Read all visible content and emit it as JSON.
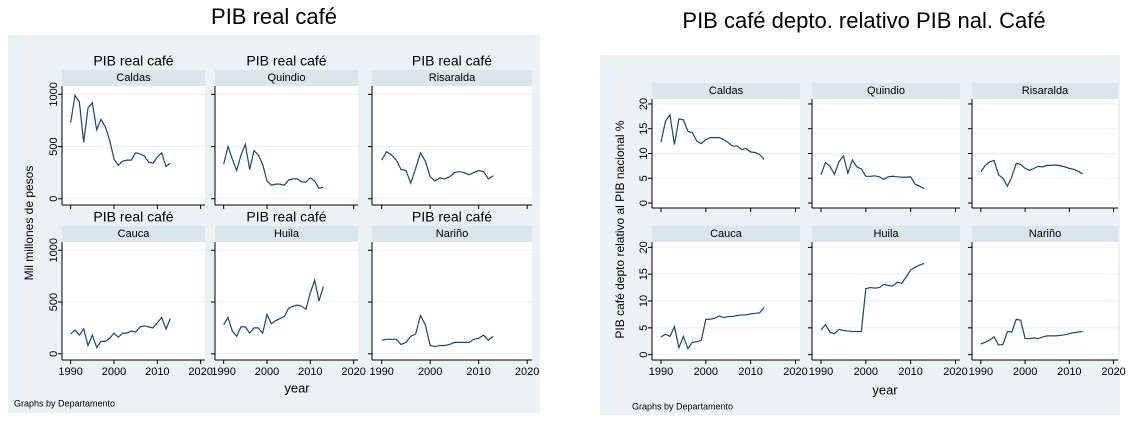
{
  "chart_data": [
    {
      "type": "line",
      "title": "PIB real café",
      "panel_title": "PIB real café",
      "ylabel": "Mil millones de pesos",
      "xlabel": "year",
      "note": "Graphs by Departamento",
      "x": [
        1990,
        1991,
        1992,
        1993,
        1994,
        1995,
        1996,
        1997,
        1998,
        1999,
        2000,
        2001,
        2002,
        2003,
        2004,
        2005,
        2006,
        2007,
        2008,
        2009,
        2010,
        2011,
        2012,
        2013
      ],
      "xlim": [
        1988,
        2021
      ],
      "xticks": [
        1990,
        2000,
        2010,
        2020
      ],
      "ylim": [
        -60,
        1080
      ],
      "yticks": [
        0,
        500,
        1000
      ],
      "series": [
        {
          "name": "Caldas",
          "color": "#1a476f",
          "values": [
            730,
            990,
            930,
            540,
            870,
            920,
            660,
            760,
            690,
            560,
            380,
            320,
            360,
            370,
            370,
            440,
            430,
            410,
            350,
            340,
            400,
            440,
            310,
            340
          ]
        },
        {
          "name": "Quindio",
          "color": "#1a476f",
          "values": [
            330,
            500,
            380,
            270,
            420,
            520,
            280,
            460,
            420,
            330,
            170,
            130,
            140,
            140,
            130,
            180,
            190,
            190,
            160,
            160,
            200,
            170,
            100,
            110
          ]
        },
        {
          "name": "Risaralda",
          "color": "#1a476f",
          "values": [
            370,
            450,
            420,
            370,
            280,
            270,
            150,
            290,
            440,
            360,
            210,
            170,
            200,
            190,
            210,
            250,
            260,
            250,
            230,
            250,
            270,
            260,
            190,
            220
          ]
        },
        {
          "name": "Cauca",
          "color": "#1a476f",
          "values": [
            190,
            230,
            180,
            240,
            80,
            180,
            60,
            120,
            120,
            150,
            200,
            160,
            200,
            200,
            220,
            210,
            260,
            270,
            260,
            250,
            300,
            350,
            240,
            340
          ]
        },
        {
          "name": "Huila",
          "color": "#1a476f",
          "values": [
            280,
            350,
            220,
            170,
            260,
            260,
            200,
            250,
            250,
            200,
            380,
            290,
            320,
            340,
            360,
            440,
            460,
            470,
            460,
            430,
            590,
            710,
            510,
            650
          ]
        },
        {
          "name": "Nariño",
          "color": "#1a476f",
          "values": [
            130,
            140,
            140,
            140,
            90,
            110,
            170,
            190,
            370,
            280,
            80,
            70,
            80,
            80,
            90,
            110,
            110,
            110,
            110,
            140,
            150,
            180,
            130,
            170
          ]
        }
      ]
    },
    {
      "type": "line",
      "title": "PIB café depto. relativo PIB nal. Café",
      "ylabel": "PIB café depto relativo al PIB nacional %",
      "xlabel": "year",
      "note": "Graphs by Departamento",
      "x": [
        1990,
        1991,
        1992,
        1993,
        1994,
        1995,
        1996,
        1997,
        1998,
        1999,
        2000,
        2001,
        2002,
        2003,
        2004,
        2005,
        2006,
        2007,
        2008,
        2009,
        2010,
        2011,
        2012,
        2013
      ],
      "xlim": [
        1988,
        2021
      ],
      "xticks": [
        1990,
        2000,
        2010,
        2020
      ],
      "ylim": [
        -1,
        21
      ],
      "yticks": [
        0,
        5,
        10,
        15,
        20
      ],
      "series": [
        {
          "name": "Caldas",
          "color": "#1a476f",
          "values": [
            12.3,
            16.5,
            17.8,
            11.8,
            17,
            16.8,
            14.5,
            14.2,
            12.5,
            12,
            12.8,
            13.2,
            13.2,
            13.2,
            12.8,
            12.2,
            11.5,
            11.5,
            10.8,
            11,
            10.3,
            10.2,
            9.8,
            8.8
          ]
        },
        {
          "name": "Quindio",
          "color": "#1a476f",
          "values": [
            5.7,
            8.2,
            7.4,
            5.8,
            8.3,
            9.5,
            6,
            8.7,
            7.3,
            6.9,
            5.4,
            5.4,
            5.5,
            5.3,
            4.8,
            5.3,
            5.4,
            5.3,
            5.2,
            5.2,
            5.3,
            3.8,
            3.4,
            2.9
          ]
        },
        {
          "name": "Risaralda",
          "color": "#1a476f",
          "values": [
            6.3,
            7.6,
            8.3,
            8.6,
            5.7,
            5,
            3.4,
            5.3,
            8,
            7.8,
            7,
            6.6,
            7,
            7.4,
            7.3,
            7.6,
            7.6,
            7.7,
            7.5,
            7.3,
            7,
            6.8,
            6.4,
            5.9
          ]
        },
        {
          "name": "Cauca",
          "color": "#1a476f",
          "values": [
            3.3,
            3.8,
            3.4,
            5.2,
            1.3,
            3.4,
            1.1,
            2.3,
            2.4,
            2.7,
            6.6,
            6.6,
            6.8,
            7.2,
            6.9,
            7.1,
            7.1,
            7.3,
            7.4,
            7.4,
            7.6,
            7.7,
            7.8,
            8.8
          ]
        },
        {
          "name": "Huila",
          "color": "#1a476f",
          "values": [
            4.6,
            5.6,
            4.2,
            3.9,
            4.7,
            4.5,
            4.4,
            4.3,
            4.3,
            4.3,
            12.3,
            12.5,
            12.4,
            12.5,
            13.1,
            12.9,
            12.8,
            13.5,
            13.3,
            14.5,
            15.8,
            16.3,
            16.7,
            17
          ]
        },
        {
          "name": "Nariño",
          "color": "#1a476f",
          "values": [
            2,
            2.3,
            2.7,
            3.3,
            1.8,
            1.9,
            4.3,
            4.2,
            6.6,
            6.4,
            3,
            3,
            3.1,
            3,
            3.3,
            3.5,
            3.5,
            3.5,
            3.6,
            3.7,
            3.9,
            4.1,
            4.2,
            4.3
          ]
        }
      ]
    }
  ]
}
